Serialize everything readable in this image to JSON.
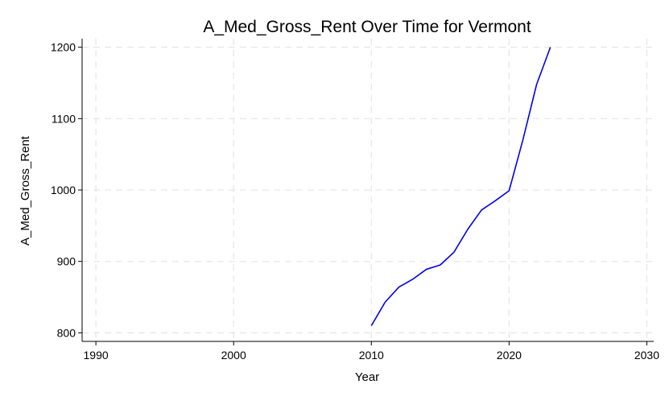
{
  "chart_data": {
    "type": "line",
    "title": "A_Med_Gross_Rent Over Time for Vermont",
    "xlabel": "Year",
    "ylabel": "A_Med_Gross_Rent",
    "xlim": [
      1989,
      2030.5
    ],
    "ylim": [
      788,
      1212
    ],
    "xticks": [
      1990,
      2000,
      2010,
      2020,
      2030
    ],
    "yticks": [
      800,
      900,
      1000,
      1100,
      1200
    ],
    "grid": true,
    "legend": "none",
    "series": [
      {
        "color": "#0000ee",
        "x": [
          2010,
          2011,
          2012,
          2013,
          2014,
          2015,
          2016,
          2017,
          2018,
          2019,
          2020,
          2021,
          2022,
          2023
        ],
        "y": [
          810,
          843,
          864,
          875,
          889,
          895,
          913,
          945,
          972,
          985,
          999,
          1070,
          1148,
          1200
        ]
      }
    ]
  }
}
